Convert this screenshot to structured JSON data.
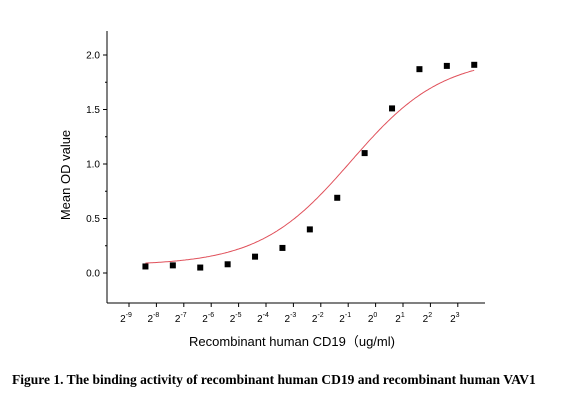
{
  "caption": "Figure 1. The binding activity of recombinant human CD19 and recombinant human VAV1",
  "chart_data": {
    "type": "scatter",
    "xlabel": "Recombinant human CD19（ug/ml)",
    "ylabel": "Mean OD value",
    "x_scale": "log2",
    "ylim": [
      -0.2,
      2.2
    ],
    "x_ticks": [
      {
        "base": "2",
        "exp": "-9"
      },
      {
        "base": "2",
        "exp": "-8"
      },
      {
        "base": "2",
        "exp": "-7"
      },
      {
        "base": "2",
        "exp": "-6"
      },
      {
        "base": "2",
        "exp": "-5"
      },
      {
        "base": "2",
        "exp": "-4"
      },
      {
        "base": "2",
        "exp": "-3"
      },
      {
        "base": "2",
        "exp": "-2"
      },
      {
        "base": "2",
        "exp": "-1"
      },
      {
        "base": "2",
        "exp": "0"
      },
      {
        "base": "2",
        "exp": "1"
      },
      {
        "base": "2",
        "exp": "2"
      },
      {
        "base": "2",
        "exp": "3"
      }
    ],
    "y_ticks": [
      "0.0",
      "0.5",
      "1.0",
      "1.5",
      "2.0"
    ],
    "series": [
      {
        "x_exp": [
          -8.4,
          -7.4,
          -6.4,
          -5.4,
          -4.4,
          -3.4,
          -2.4,
          -1.4,
          -0.4,
          0.6,
          1.6,
          2.6,
          3.6
        ],
        "values": [
          0.06,
          0.07,
          0.05,
          0.08,
          0.15,
          0.23,
          0.4,
          0.69,
          1.1,
          1.51,
          1.87,
          1.9,
          1.91
        ],
        "marker": "square",
        "marker_color": "#000000"
      }
    ],
    "fit_curve": {
      "model": "4PL",
      "bottom": 0.07,
      "top": 1.98,
      "ec50_exp": -0.9,
      "slope": 0.6,
      "color": "#e0505a"
    },
    "grid": false,
    "legend": "none"
  }
}
